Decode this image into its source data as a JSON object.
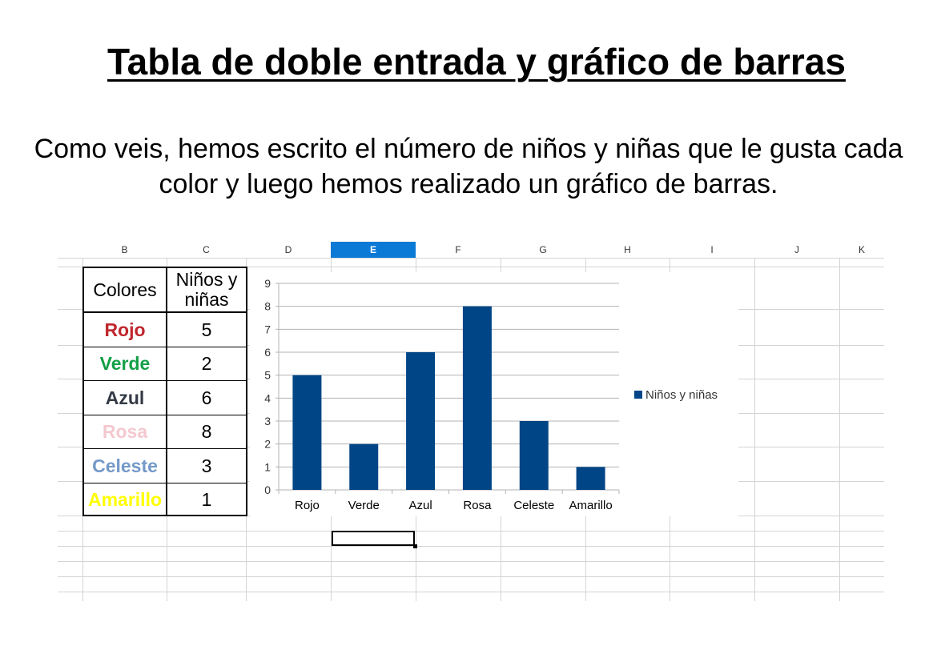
{
  "title": "Tabla de doble entrada y gráfico de barras",
  "subtitle": "Como veis, hemos escrito el número de niños y niñas que le gusta cada color y luego hemos realizado un gráfico de barras.",
  "spreadsheet": {
    "columns": [
      "B",
      "C",
      "D",
      "E",
      "F",
      "G",
      "H",
      "I",
      "J",
      "K"
    ],
    "active_column": "E"
  },
  "table": {
    "header_col1": "Colores",
    "header_col2": "Niños y niñas",
    "rows": [
      {
        "label": "Rojo",
        "value": "5",
        "color": "#c0262d"
      },
      {
        "label": "Verde",
        "value": "2",
        "color": "#13a047"
      },
      {
        "label": "Azul",
        "value": "6",
        "color": "#333a45"
      },
      {
        "label": "Rosa",
        "value": "8",
        "color": "#f4c8cf"
      },
      {
        "label": "Celeste",
        "value": "3",
        "color": "#7399c9"
      },
      {
        "label": "Amarillo",
        "value": "1",
        "color": "#ffff00"
      }
    ]
  },
  "chart_data": {
    "type": "bar",
    "categories": [
      "Rojo",
      "Verde",
      "Azul",
      "Rosa",
      "Celeste",
      "Amarillo"
    ],
    "series": [
      {
        "name": "Niños y niñas",
        "values": [
          5,
          2,
          6,
          8,
          3,
          1
        ],
        "color": "#004586"
      }
    ],
    "ylim": [
      0,
      9
    ],
    "yticks": [
      0,
      1,
      2,
      3,
      4,
      5,
      6,
      7,
      8,
      9
    ],
    "grid": true,
    "legend": "right"
  }
}
